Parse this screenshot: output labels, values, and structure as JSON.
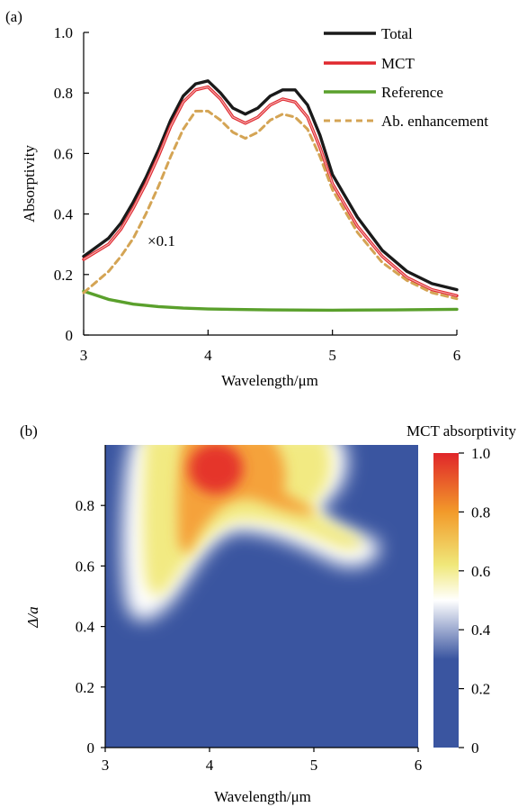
{
  "panel_a": {
    "label": "(a)",
    "annotation": "×0.1"
  },
  "panel_b": {
    "label": "(b)",
    "colorbar_title": "MCT absorptivity",
    "colorbar_ticks": [
      "1.0",
      "0.8",
      "0.6",
      "0.4",
      "0.2",
      "0"
    ]
  },
  "colors": {
    "total": "#1a1a1a",
    "mct": "#e0282e",
    "reference": "#5aa02c",
    "enhancement": "#d4a454"
  },
  "chart_data": [
    {
      "type": "line",
      "title": "",
      "xlabel": "Wavelength/μm",
      "ylabel": "Absorptivity",
      "xlim": [
        3,
        6
      ],
      "ylim": [
        0,
        1.0
      ],
      "xticks": [
        "3",
        "4",
        "5",
        "6"
      ],
      "yticks": [
        "0",
        "0.2",
        "0.4",
        "0.6",
        "0.8",
        "1.0"
      ],
      "legend_position": "top-right",
      "series": [
        {
          "name": "Total",
          "color": "#1a1a1a",
          "style": "solid",
          "x": [
            3.0,
            3.2,
            3.3,
            3.4,
            3.5,
            3.6,
            3.7,
            3.8,
            3.9,
            4.0,
            4.1,
            4.2,
            4.3,
            4.4,
            4.5,
            4.6,
            4.7,
            4.8,
            4.9,
            5.0,
            5.2,
            5.4,
            5.6,
            5.8,
            6.0
          ],
          "y": [
            0.26,
            0.32,
            0.37,
            0.44,
            0.52,
            0.61,
            0.71,
            0.79,
            0.83,
            0.84,
            0.8,
            0.75,
            0.73,
            0.75,
            0.79,
            0.81,
            0.81,
            0.76,
            0.66,
            0.53,
            0.39,
            0.28,
            0.21,
            0.17,
            0.15
          ]
        },
        {
          "name": "MCT",
          "color": "#e0282e",
          "style": "solid",
          "x": [
            3.0,
            3.2,
            3.3,
            3.4,
            3.5,
            3.6,
            3.7,
            3.8,
            3.9,
            4.0,
            4.1,
            4.2,
            4.3,
            4.4,
            4.5,
            4.6,
            4.7,
            4.8,
            4.9,
            5.0,
            5.2,
            5.4,
            5.6,
            5.8,
            6.0
          ],
          "y": [
            0.25,
            0.3,
            0.35,
            0.42,
            0.5,
            0.59,
            0.69,
            0.77,
            0.81,
            0.82,
            0.78,
            0.72,
            0.7,
            0.72,
            0.76,
            0.78,
            0.77,
            0.72,
            0.62,
            0.5,
            0.36,
            0.26,
            0.19,
            0.15,
            0.13
          ]
        },
        {
          "name": "Reference",
          "color": "#5aa02c",
          "style": "solid",
          "x": [
            3.0,
            3.2,
            3.4,
            3.6,
            3.8,
            4.0,
            4.5,
            5.0,
            5.5,
            6.0
          ],
          "y": [
            0.145,
            0.118,
            0.102,
            0.094,
            0.089,
            0.086,
            0.083,
            0.082,
            0.083,
            0.085
          ]
        },
        {
          "name": "Ab. enhancement",
          "color": "#d4a454",
          "style": "dashed",
          "x": [
            3.0,
            3.2,
            3.3,
            3.4,
            3.5,
            3.6,
            3.7,
            3.8,
            3.9,
            4.0,
            4.1,
            4.2,
            4.3,
            4.4,
            4.5,
            4.6,
            4.7,
            4.8,
            4.9,
            5.0,
            5.2,
            5.4,
            5.6,
            5.8,
            6.0
          ],
          "y": [
            0.14,
            0.21,
            0.26,
            0.32,
            0.4,
            0.49,
            0.59,
            0.68,
            0.74,
            0.74,
            0.71,
            0.67,
            0.65,
            0.67,
            0.71,
            0.73,
            0.72,
            0.68,
            0.59,
            0.48,
            0.34,
            0.24,
            0.18,
            0.14,
            0.12
          ]
        }
      ]
    },
    {
      "type": "heatmap",
      "title": "",
      "xlabel": "Wavelength/μm",
      "ylabel": "Δ/a",
      "xlim": [
        3,
        6
      ],
      "ylim": [
        0,
        1.0
      ],
      "xticks": [
        "3",
        "4",
        "5",
        "6"
      ],
      "yticks": [
        "0",
        "0.2",
        "0.4",
        "0.6",
        "0.8"
      ],
      "colorbar_label": "MCT absorptivity",
      "colorbar_range": [
        0,
        1.0
      ],
      "features": [
        {
          "x": 4.2,
          "y": 0.9,
          "value": 1.0
        },
        {
          "x": 3.85,
          "y": 0.72,
          "value": 0.8
        },
        {
          "x": 3.5,
          "y": 0.5,
          "value": 0.6
        },
        {
          "x": 5.2,
          "y": 0.72,
          "value": 0.6
        },
        {
          "x": 4.6,
          "y": 0.95,
          "value": 0.7
        }
      ]
    }
  ]
}
